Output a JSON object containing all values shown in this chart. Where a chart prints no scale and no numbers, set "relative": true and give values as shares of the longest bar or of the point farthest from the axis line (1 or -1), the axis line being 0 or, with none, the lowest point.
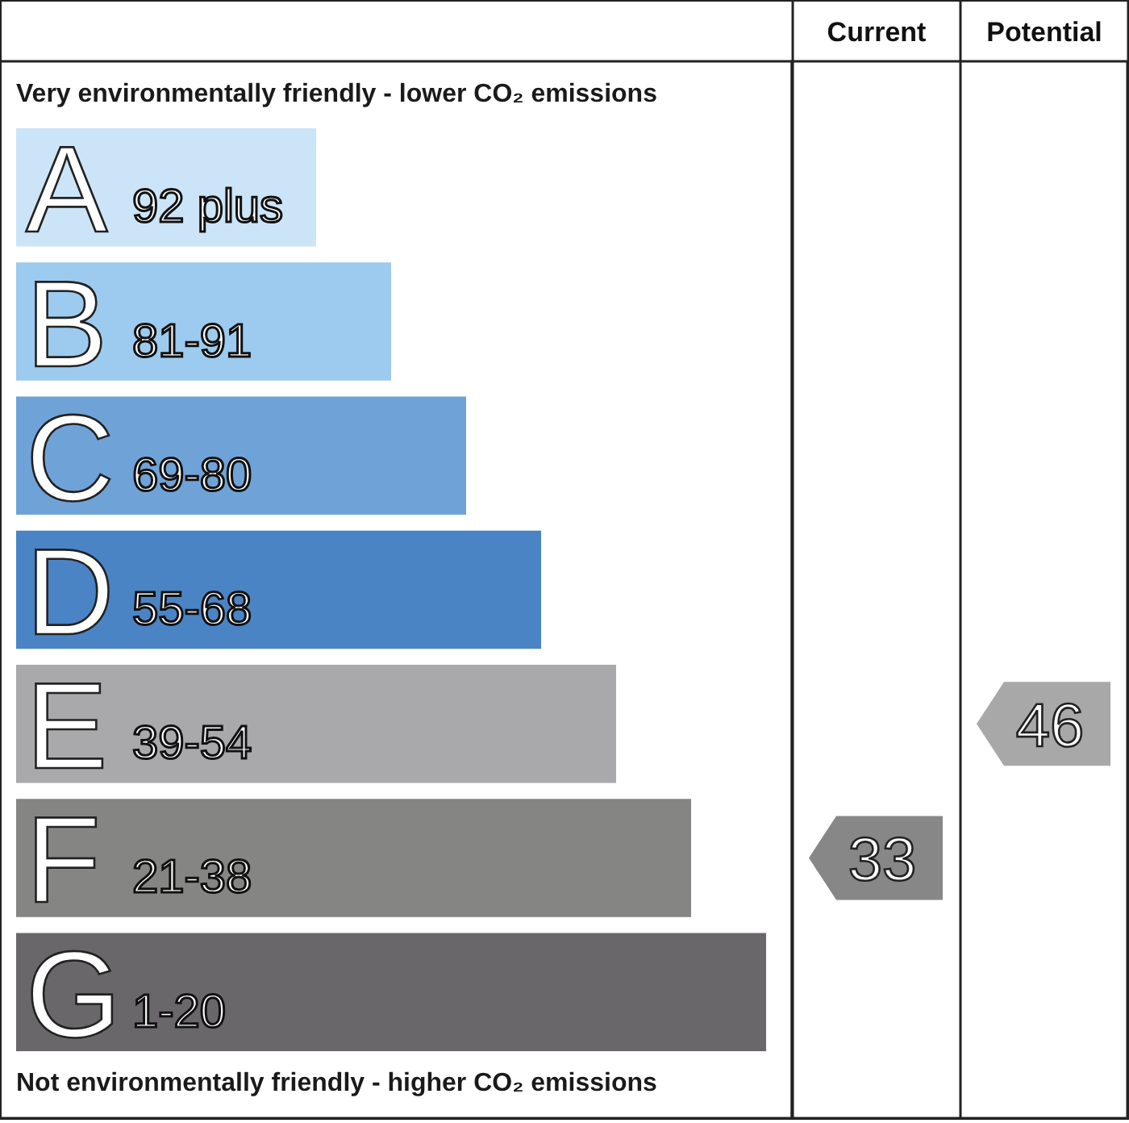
{
  "chart_data": [
    {
      "type": "bar",
      "orientation": "horizontal",
      "relative": true,
      "title": "Very environmentally friendly - lower CO₂ emissions",
      "categories": [
        null,
        null,
        null,
        null,
        null,
        null,
        null
      ],
      "values": [
        0.4,
        0.5,
        0.6,
        0.7,
        0.8,
        0.9,
        1
      ],
      "colors": [
        "#cce4f7",
        "#9ccbef",
        "#6fa3d8",
        "#4a84c5",
        "#a9a8ab",
        "#858684",
        "#69676a"
      ],
      "annotations": [
        "Not environmentally friendly - higher CO₂ emissions"
      ]
    },
    {
      "type": "heatmap",
      "categories": [
        "Current",
        "Potential"
      ],
      "y_categories": [
        "A",
        "B",
        "C",
        "D",
        "E",
        "F",
        "G"
      ],
      "y2_categories": [
        "92 plus",
        "81-91",
        "69-80",
        "55-68",
        "39-54",
        "21-38",
        "1-20"
      ],
      "cells": [
        [
          null,
          null
        ],
        [
          null,
          null
        ],
        [
          null,
          null
        ],
        [
          null,
          null
        ],
        [
          null,
          46
        ],
        [
          33,
          null
        ],
        [
          null,
          null
        ]
      ],
      "colors": [
        "#a8a8a8",
        "#878787"
      ],
      "data_labels": true
    }
  ]
}
